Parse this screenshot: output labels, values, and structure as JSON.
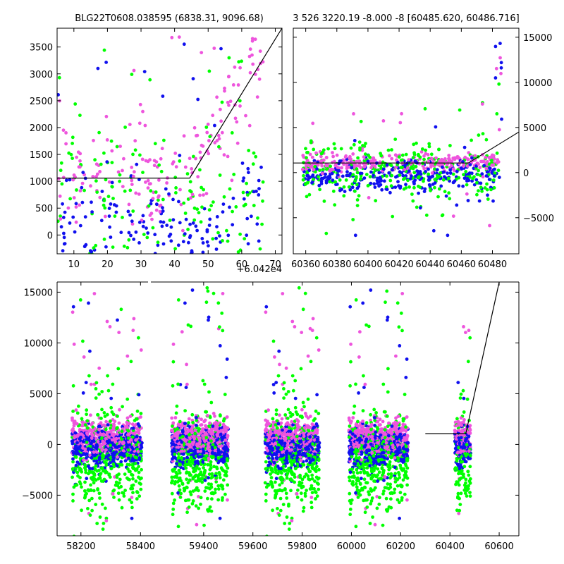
{
  "colors": {
    "series_1": "#00ff00",
    "series_2": "#ee55dd",
    "series_3": "#1010ee",
    "model": "#000000"
  },
  "chart_data": [
    {
      "type": "scatter",
      "title": "BLG22T0608.038595 (6838.31, 9096.68)",
      "xlabel": "",
      "ylabel": "",
      "xlim": [
        5,
        72
      ],
      "ylim": [
        -350,
        3850
      ],
      "x_offset_label": "+6.042e4",
      "xticks": [
        10,
        20,
        30,
        40,
        50,
        60,
        70
      ],
      "xtick_labels": [
        "10",
        "20",
        "30",
        "40",
        "50",
        "60",
        "70"
      ],
      "yticks": [
        0,
        500,
        1000,
        1500,
        2000,
        2500,
        3000,
        3500
      ],
      "ytick_labels": [
        "0",
        "500",
        "1000",
        "1500",
        "2000",
        "2500",
        "3000",
        "3500"
      ],
      "grid": false,
      "model_line": {
        "x": [
          5,
          44.5,
          72
        ],
        "y": [
          1060,
          1060,
          3850
        ]
      }
    },
    {
      "type": "scatter",
      "title": "3 526 3220.19 -8.000 -8 [60485.620, 60486.716]",
      "xlabel": "",
      "ylabel": "",
      "xlim": [
        60352,
        60497
      ],
      "ylim": [
        -9000,
        16000
      ],
      "xticks": [
        60360,
        60380,
        60400,
        60420,
        60440,
        60460,
        60480
      ],
      "xtick_labels": [
        "60360",
        "60380",
        "60400",
        "60420",
        "60440",
        "60460",
        "60480"
      ],
      "yticks": [
        -5000,
        0,
        5000,
        10000,
        15000
      ],
      "ytick_labels": [
        "−5000",
        "0",
        "5000",
        "10000",
        "15000"
      ],
      "grid": false,
      "model_line": {
        "x": [
          60352,
          60464.5,
          60497
        ],
        "y": [
          1060,
          1060,
          4500
        ]
      }
    },
    {
      "type": "scatter",
      "title": "",
      "xlabel": "",
      "ylabel": "",
      "xlim": [
        58120,
        60680
      ],
      "ylim": [
        -9000,
        16000
      ],
      "xticks": [
        58200,
        58400,
        59400,
        59600,
        59800,
        60000,
        60200,
        60400,
        60600
      ],
      "xtick_labels": [
        "58200",
        "58400",
        "59400",
        "59600",
        "59800",
        "60000",
        "60200",
        "60400",
        "60600"
      ],
      "yticks": [
        -5000,
        0,
        5000,
        10000,
        15000
      ],
      "ytick_labels": [
        "−5000",
        "0",
        "5000",
        "10000",
        "15000"
      ],
      "grid": false,
      "broken_x_axis": true,
      "model_line": {
        "x": [
          60300,
          60464.5,
          60600
        ],
        "y": [
          1060,
          1060,
          16000
        ]
      }
    }
  ]
}
